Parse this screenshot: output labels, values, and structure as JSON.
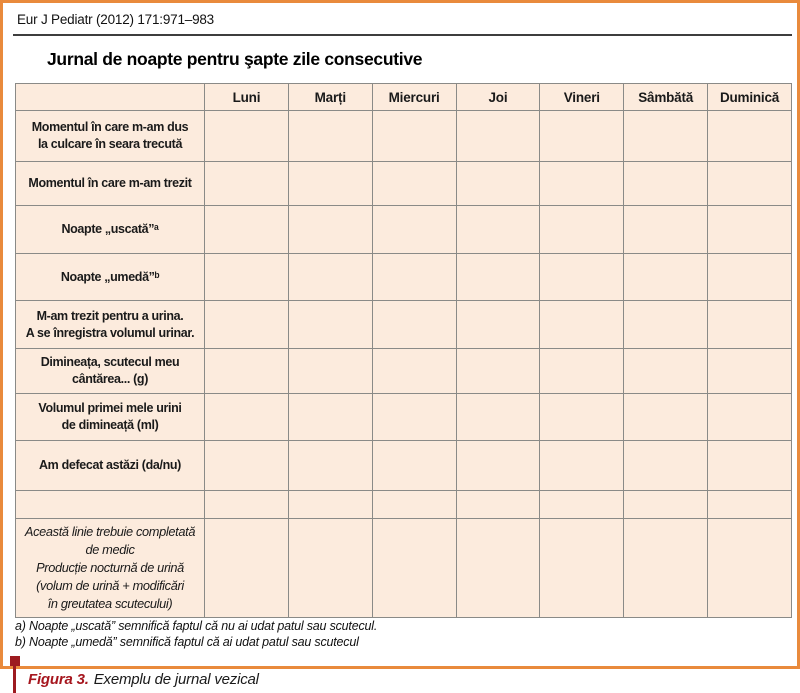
{
  "page_header": "Eur J Pediatr (2012) 171:971–983",
  "figure_title": "Jurnal de noapte pentru şapte zile consecutive",
  "table": {
    "day_columns": [
      "Luni",
      "Marți",
      "Miercuri",
      "Joi",
      "Vineri",
      "Sâmbătă",
      "Duminică"
    ],
    "rows": [
      {
        "label": "Momentul în care m-am dus\nla culcare în seara trecută",
        "italic": false
      },
      {
        "label": "Momentul în care m-am trezit",
        "italic": false
      },
      {
        "label": "Noapte „uscată”ᵃ",
        "italic": false
      },
      {
        "label": "Noapte „umedă”ᵇ",
        "italic": false
      },
      {
        "label": "M-am trezit pentru a urina.\nA se înregistra volumul urinar.",
        "italic": false
      },
      {
        "label": "Dimineața, scutecul meu\ncântărea... (g)",
        "italic": false
      },
      {
        "label": "Volumul primei mele urini\nde dimineață (ml)",
        "italic": false
      },
      {
        "label": "Am defecat astăzi (da/nu)",
        "italic": false
      },
      {
        "label": "",
        "italic": false
      },
      {
        "label": "Această linie trebuie completată\nde medic\nProducție nocturnă de urină\n(volum de urină + modificări\nîn greutatea scutecului)",
        "italic": true
      }
    ]
  },
  "footnotes": [
    "a) Noapte „uscată” semnifică faptul că nu ai udat patul sau scutecul.",
    "b) Noapte „umedă” semnifică faptul că ai udat patul sau scutecul"
  ],
  "caption": {
    "label": "Figura 3.",
    "text": "Exemplu de jurnal vezical"
  },
  "colors": {
    "frame_orange": "#E98A3C",
    "marker_red": "#9D1B20",
    "caption_red": "#A6161E",
    "cell_background": "#FCEBDD",
    "grid_gray": "#8A8A87"
  }
}
